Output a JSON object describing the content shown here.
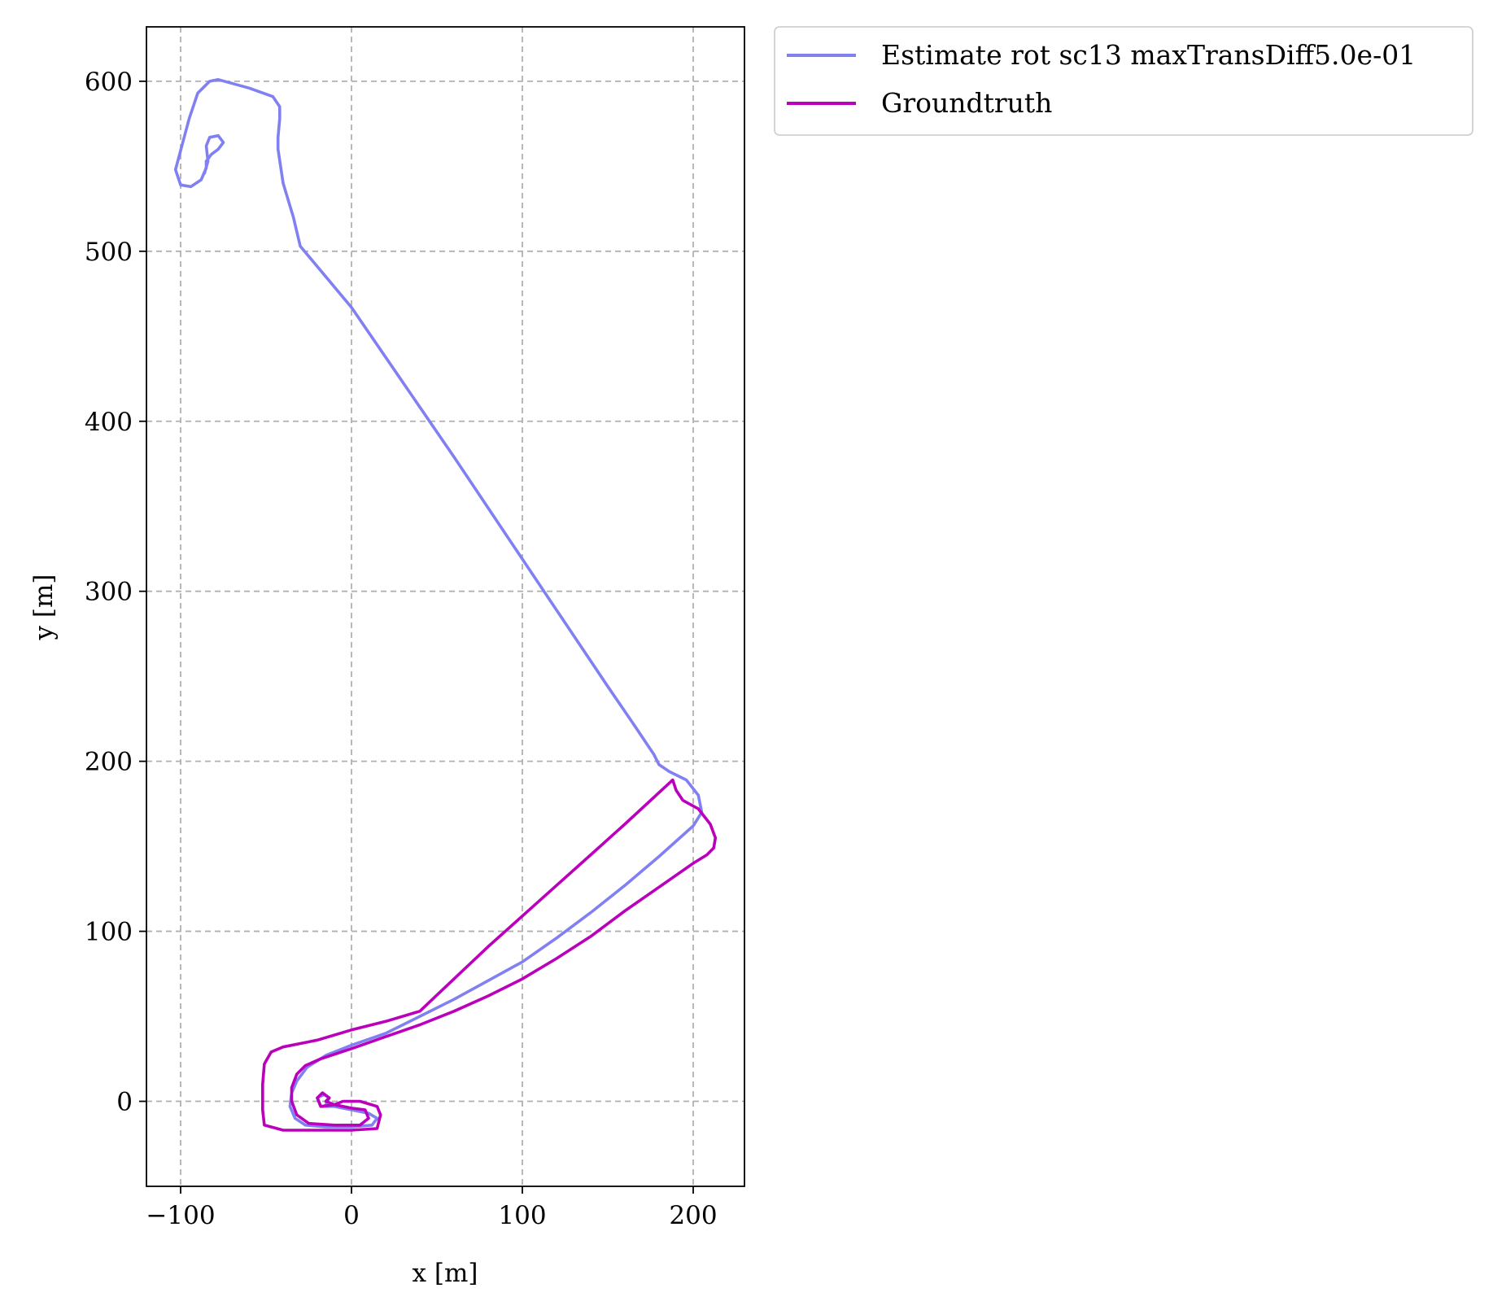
{
  "chart_data": {
    "type": "line",
    "title": "",
    "xlabel": "x [m]",
    "ylabel": "y [m]",
    "xlim": [
      -120,
      230
    ],
    "ylim": [
      -50,
      632
    ],
    "xticks": [
      -100,
      0,
      100,
      200
    ],
    "xtick_labels": [
      "−100",
      "0",
      "100",
      "200"
    ],
    "yticks": [
      0,
      100,
      200,
      300,
      400,
      500,
      600
    ],
    "ytick_labels": [
      "0",
      "100",
      "200",
      "300",
      "400",
      "500",
      "600"
    ],
    "grid": true,
    "legend_position": "outside-top-right",
    "series": [
      {
        "name": "Estimate rot sc13 maxTransDiff5.0e-01",
        "color": "#8080f2",
        "points": [
          [
            -15,
            -2
          ],
          [
            -13,
            2
          ],
          [
            -16,
            4
          ],
          [
            -20,
            2
          ],
          [
            -18,
            -3
          ],
          [
            -10,
            -3
          ],
          [
            0,
            -5
          ],
          [
            10,
            -7
          ],
          [
            15,
            -10
          ],
          [
            12,
            -14
          ],
          [
            0,
            -15
          ],
          [
            -15,
            -15
          ],
          [
            -27,
            -14
          ],
          [
            -33,
            -10
          ],
          [
            -36,
            -3
          ],
          [
            -35,
            5
          ],
          [
            -32,
            12
          ],
          [
            -26,
            20
          ],
          [
            -15,
            27
          ],
          [
            0,
            33
          ],
          [
            20,
            40
          ],
          [
            40,
            50
          ],
          [
            60,
            60
          ],
          [
            80,
            71
          ],
          [
            100,
            82
          ],
          [
            120,
            96
          ],
          [
            140,
            111
          ],
          [
            160,
            127
          ],
          [
            180,
            144
          ],
          [
            200,
            162
          ],
          [
            205,
            170
          ],
          [
            203,
            180
          ],
          [
            196,
            189
          ],
          [
            186,
            194
          ],
          [
            180,
            198
          ],
          [
            177,
            204
          ],
          [
            165,
            222
          ],
          [
            150,
            244
          ],
          [
            120,
            289
          ],
          [
            90,
            334
          ],
          [
            60,
            379
          ],
          [
            30,
            423
          ],
          [
            0,
            467
          ],
          [
            -30,
            503
          ],
          [
            -34,
            520
          ],
          [
            -40,
            540
          ],
          [
            -43,
            560
          ],
          [
            -43,
            567
          ],
          [
            -42,
            578
          ],
          [
            -42,
            585
          ],
          [
            -46,
            591
          ],
          [
            -60,
            596
          ],
          [
            -78,
            601
          ],
          [
            -83,
            600
          ],
          [
            -90,
            593
          ],
          [
            -95,
            578
          ],
          [
            -99,
            563
          ],
          [
            -103,
            548
          ],
          [
            -100,
            539
          ],
          [
            -94,
            538
          ],
          [
            -88,
            542
          ],
          [
            -85,
            549
          ],
          [
            -85,
            553
          ],
          [
            -82,
            557
          ],
          [
            -78,
            560
          ],
          [
            -75,
            564
          ],
          [
            -78,
            568
          ],
          [
            -83,
            567
          ],
          [
            -85,
            562
          ],
          [
            -84,
            553
          ],
          [
            -86,
            546
          ]
        ]
      },
      {
        "name": "Groundtruth",
        "color": "#bb00bb",
        "points": [
          [
            -15,
            0
          ],
          [
            -13,
            2
          ],
          [
            -17,
            5
          ],
          [
            -20,
            2
          ],
          [
            -18,
            -3
          ],
          [
            -10,
            -2
          ],
          [
            -5,
            0
          ],
          [
            5,
            0
          ],
          [
            15,
            -3
          ],
          [
            17,
            -8
          ],
          [
            15,
            -16
          ],
          [
            0,
            -17
          ],
          [
            -20,
            -17
          ],
          [
            -40,
            -17
          ],
          [
            -51,
            -14
          ],
          [
            -52,
            -5
          ],
          [
            -52,
            10
          ],
          [
            -51,
            22
          ],
          [
            -47,
            29
          ],
          [
            -40,
            32
          ],
          [
            -20,
            36
          ],
          [
            0,
            42
          ],
          [
            20,
            47
          ],
          [
            40,
            53
          ],
          [
            60,
            72
          ],
          [
            80,
            91
          ],
          [
            100,
            109
          ],
          [
            120,
            127
          ],
          [
            140,
            145
          ],
          [
            160,
            163
          ],
          [
            188,
            189
          ],
          [
            190,
            183
          ],
          [
            194,
            177
          ],
          [
            203,
            172
          ],
          [
            210,
            163
          ],
          [
            213,
            155
          ],
          [
            212,
            149
          ],
          [
            208,
            145
          ],
          [
            200,
            140
          ],
          [
            180,
            126
          ],
          [
            160,
            112
          ],
          [
            140,
            97
          ],
          [
            120,
            84
          ],
          [
            100,
            72
          ],
          [
            80,
            62
          ],
          [
            60,
            53
          ],
          [
            40,
            45
          ],
          [
            20,
            38
          ],
          [
            0,
            31
          ],
          [
            -18,
            25
          ],
          [
            -27,
            21
          ],
          [
            -32,
            16
          ],
          [
            -35,
            8
          ],
          [
            -35,
            0
          ],
          [
            -32,
            -8
          ],
          [
            -25,
            -13
          ],
          [
            -10,
            -14
          ],
          [
            5,
            -14
          ],
          [
            10,
            -10
          ],
          [
            8,
            -5
          ],
          [
            0,
            -4
          ],
          [
            -10,
            -2
          ],
          [
            -15,
            0
          ]
        ]
      }
    ]
  }
}
